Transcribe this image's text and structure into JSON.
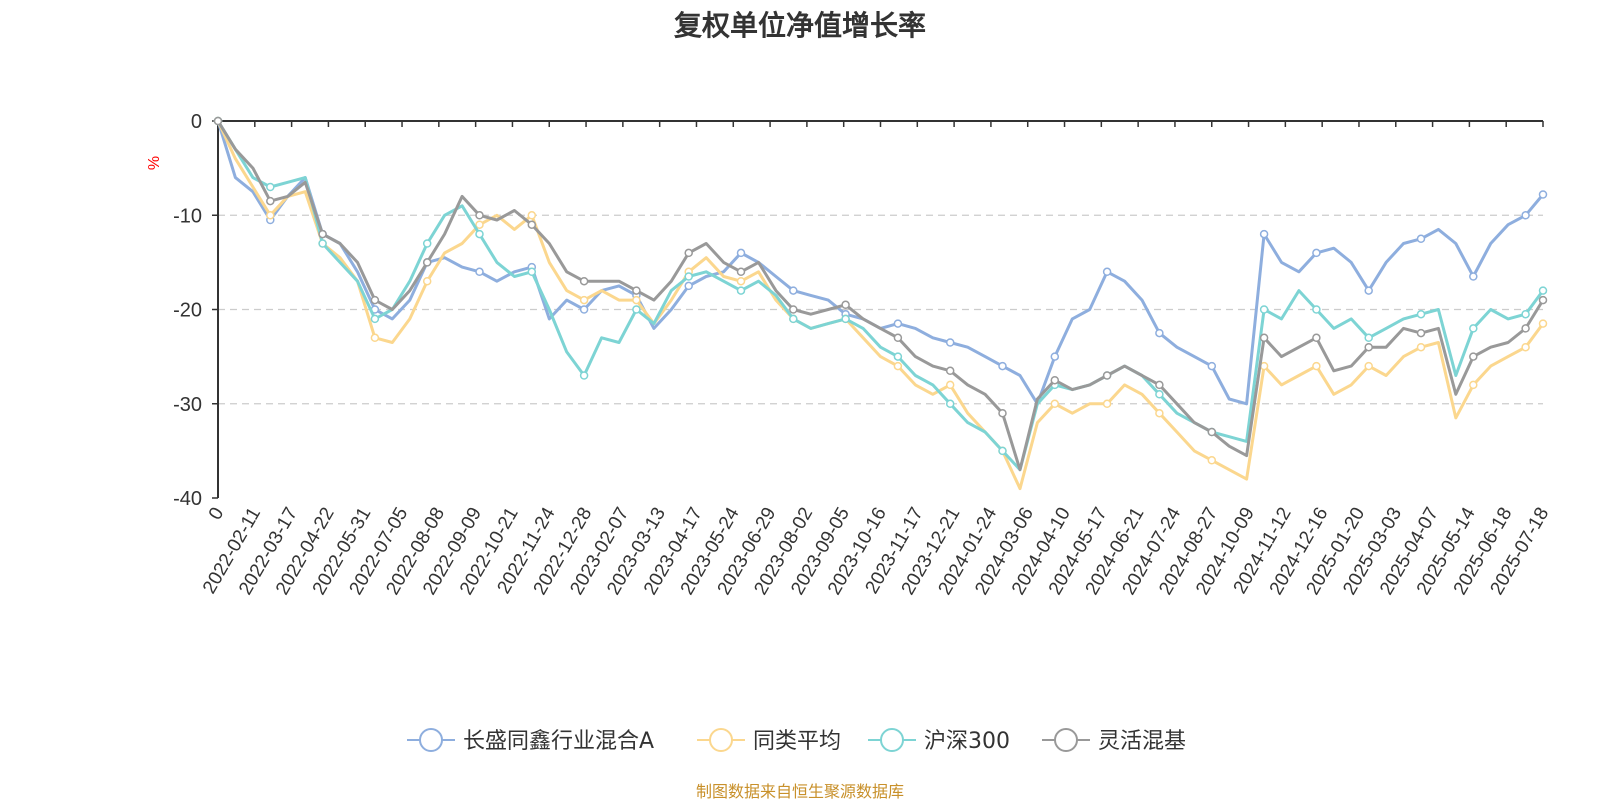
{
  "source": "制图数据来自恒生聚源数据库",
  "colors": {
    "source_text": "#c8902a",
    "unit_text": "#ff0000",
    "axis": "#333333",
    "grid": "#cccccc"
  },
  "chart_data": {
    "type": "line",
    "title": "复权单位净值增长率",
    "ylabel": "%",
    "ylim": [
      -40,
      0
    ],
    "y_ticks": [
      0,
      -10,
      -20,
      -30,
      -40
    ],
    "grid": "dashed horizontal",
    "legend_position": "bottom",
    "x_tick_labels": [
      "0",
      "2022-02-11",
      "2022-03-17",
      "2022-04-22",
      "2022-05-31",
      "2022-07-05",
      "2022-08-08",
      "2022-09-09",
      "2022-10-21",
      "2022-11-24",
      "2022-12-28",
      "2023-02-07",
      "2023-03-13",
      "2023-04-17",
      "2023-05-24",
      "2023-06-29",
      "2023-08-02",
      "2023-09-05",
      "2023-10-16",
      "2023-11-17",
      "2023-12-21",
      "2024-01-24",
      "2024-03-06",
      "2024-04-10",
      "2024-05-17",
      "2024-06-21",
      "2024-07-24",
      "2024-08-27",
      "2024-10-09",
      "2024-11-12",
      "2024-12-16",
      "2025-01-20",
      "2025-03-03",
      "2025-04-07",
      "2025-05-14",
      "2025-06-18",
      "2025-07-18"
    ],
    "series": [
      {
        "name": "长盛同鑫行业混合A",
        "color": "#8eaede",
        "values": [
          0,
          -6,
          -7.5,
          -10.5,
          -8,
          -6,
          -12,
          -13,
          -16,
          -20,
          -21,
          -19,
          -15,
          -14.5,
          -15.5,
          -16,
          -17,
          -16,
          -15.5,
          -21,
          -19,
          -20,
          -18,
          -17.5,
          -18.5,
          -22,
          -20,
          -17.5,
          -16.5,
          -16,
          -14,
          -15,
          -16.5,
          -18,
          -18.5,
          -19,
          -20.5,
          -21,
          -22,
          -21.5,
          -22,
          -23,
          -23.5,
          -24,
          -25,
          -26,
          -27,
          -30,
          -25,
          -21,
          -20,
          -16,
          -17,
          -19,
          -22.5,
          -24,
          -25,
          -26,
          -29.5,
          -30,
          -12,
          -15,
          -16,
          -14,
          -13.5,
          -15,
          -18,
          -15,
          -13,
          -12.5,
          -11.5,
          -13,
          -16.5,
          -13,
          -11,
          -10,
          -7.8
        ]
      },
      {
        "name": "同类平均",
        "color": "#fbd78e",
        "values": [
          0,
          -4,
          -7,
          -10,
          -8,
          -7.5,
          -13,
          -14.5,
          -17,
          -23,
          -23.5,
          -21,
          -17,
          -14,
          -13,
          -11,
          -10,
          -11.5,
          -10,
          -15,
          -18,
          -19,
          -18,
          -19,
          -19,
          -21.5,
          -19,
          -16,
          -14.5,
          -16.5,
          -17,
          -16,
          -19,
          -21,
          -22,
          -21.5,
          -21,
          -23,
          -25,
          -26,
          -28,
          -29,
          -28,
          -31,
          -33,
          -35,
          -39,
          -32,
          -30,
          -31,
          -30,
          -30,
          -28,
          -29,
          -31,
          -33,
          -35,
          -36,
          -37,
          -38,
          -26,
          -28,
          -27,
          -26,
          -29,
          -28,
          -26,
          -27,
          -25,
          -24,
          -23.5,
          -31.5,
          -28,
          -26,
          -25,
          -24,
          -21.5
        ]
      },
      {
        "name": "沪深300",
        "color": "#7dd4d4",
        "values": [
          0,
          -3,
          -6,
          -7,
          -6.5,
          -6,
          -13,
          -15,
          -17,
          -21,
          -20,
          -17,
          -13,
          -10,
          -9,
          -12,
          -15,
          -16.5,
          -16,
          -20,
          -24.5,
          -27,
          -23,
          -23.5,
          -20,
          -21.5,
          -18,
          -16.5,
          -16,
          -17,
          -18,
          -17,
          -18.5,
          -21,
          -22,
          -21.5,
          -21,
          -22,
          -24,
          -25,
          -27,
          -28,
          -30,
          -32,
          -33,
          -35,
          -37,
          -30,
          -28,
          -28.5,
          -28,
          -27,
          -26,
          -27,
          -29,
          -31,
          -32,
          -33,
          -33.5,
          -34,
          -20,
          -21,
          -18,
          -20,
          -22,
          -21,
          -23,
          -22,
          -21,
          -20.5,
          -20,
          -27,
          -22,
          -20,
          -21,
          -20.5,
          -18
        ]
      },
      {
        "name": "灵活混基",
        "color": "#999999",
        "values": [
          0,
          -3,
          -5,
          -8.5,
          -8,
          -6.5,
          -12,
          -13,
          -15,
          -19,
          -20,
          -18,
          -15,
          -12,
          -8,
          -10,
          -10.5,
          -9.5,
          -11,
          -13,
          -16,
          -17,
          -17,
          -17,
          -18,
          -19,
          -17,
          -14,
          -13,
          -15,
          -16,
          -15,
          -18,
          -20,
          -20.5,
          -20,
          -19.5,
          -21,
          -22,
          -23,
          -25,
          -26,
          -26.5,
          -28,
          -29,
          -31,
          -37,
          -29.5,
          -27.5,
          -28.5,
          -28,
          -27,
          -26,
          -27,
          -28,
          -30,
          -32,
          -33,
          -34.5,
          -35.5,
          -23,
          -25,
          -24,
          -23,
          -26.5,
          -26,
          -24,
          -24,
          -22,
          -22.5,
          -22,
          -29,
          -25,
          -24,
          -23.5,
          -22,
          -19
        ]
      }
    ]
  }
}
